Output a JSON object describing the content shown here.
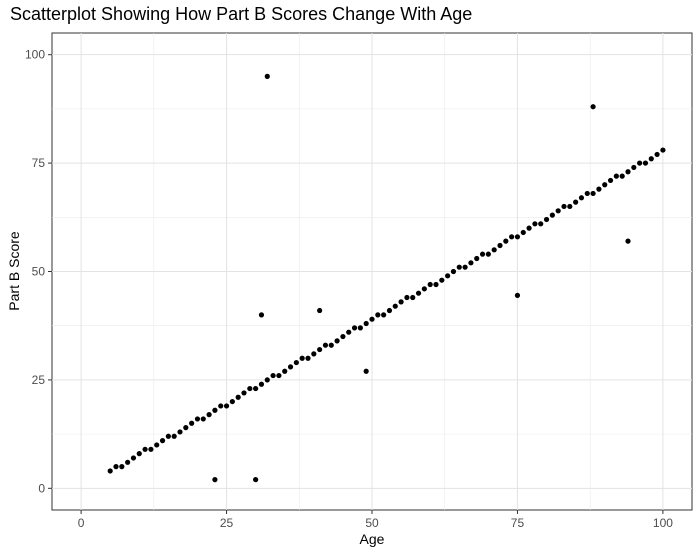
{
  "chart_data": {
    "type": "scatter",
    "title": "Scatterplot Showing How Part B Scores Change With Age",
    "xlabel": "Age",
    "ylabel": "Part B Score",
    "xlim": [
      -5,
      105
    ],
    "ylim": [
      -5,
      105
    ],
    "xticks": [
      0,
      25,
      50,
      75,
      100
    ],
    "yticks": [
      0,
      25,
      50,
      75,
      100
    ],
    "xtick_labels": [
      "0",
      "25",
      "50",
      "75",
      "100"
    ],
    "ytick_labels": [
      "0",
      "25",
      "50",
      "75",
      "100"
    ],
    "grid": true,
    "point_color": "#000000",
    "points": [
      [
        5,
        4
      ],
      [
        6,
        5
      ],
      [
        7,
        5
      ],
      [
        8,
        6
      ],
      [
        9,
        7
      ],
      [
        10,
        8
      ],
      [
        11,
        9
      ],
      [
        12,
        9
      ],
      [
        13,
        10
      ],
      [
        14,
        11
      ],
      [
        15,
        12
      ],
      [
        16,
        12
      ],
      [
        17,
        13
      ],
      [
        18,
        14
      ],
      [
        19,
        15
      ],
      [
        20,
        16
      ],
      [
        21,
        16
      ],
      [
        22,
        17
      ],
      [
        23,
        18
      ],
      [
        24,
        19
      ],
      [
        25,
        19
      ],
      [
        26,
        20
      ],
      [
        27,
        21
      ],
      [
        28,
        22
      ],
      [
        29,
        23
      ],
      [
        30,
        23
      ],
      [
        31,
        24
      ],
      [
        32,
        25
      ],
      [
        33,
        26
      ],
      [
        34,
        26
      ],
      [
        35,
        27
      ],
      [
        36,
        28
      ],
      [
        37,
        29
      ],
      [
        38,
        30
      ],
      [
        39,
        30
      ],
      [
        40,
        31
      ],
      [
        41,
        32
      ],
      [
        42,
        33
      ],
      [
        43,
        33
      ],
      [
        44,
        34
      ],
      [
        45,
        35
      ],
      [
        46,
        36
      ],
      [
        47,
        37
      ],
      [
        48,
        37
      ],
      [
        49,
        38
      ],
      [
        50,
        39
      ],
      [
        51,
        40
      ],
      [
        52,
        40
      ],
      [
        53,
        41
      ],
      [
        54,
        42
      ],
      [
        55,
        43
      ],
      [
        56,
        44
      ],
      [
        57,
        44
      ],
      [
        58,
        45
      ],
      [
        59,
        46
      ],
      [
        60,
        47
      ],
      [
        61,
        47
      ],
      [
        62,
        48
      ],
      [
        63,
        49
      ],
      [
        64,
        50
      ],
      [
        65,
        51
      ],
      [
        66,
        51
      ],
      [
        67,
        52
      ],
      [
        68,
        53
      ],
      [
        69,
        54
      ],
      [
        70,
        54
      ],
      [
        71,
        55
      ],
      [
        72,
        56
      ],
      [
        73,
        57
      ],
      [
        74,
        58
      ],
      [
        75,
        58
      ],
      [
        76,
        59
      ],
      [
        77,
        60
      ],
      [
        78,
        61
      ],
      [
        79,
        61
      ],
      [
        80,
        62
      ],
      [
        81,
        63
      ],
      [
        82,
        64
      ],
      [
        83,
        65
      ],
      [
        84,
        65
      ],
      [
        85,
        66
      ],
      [
        86,
        67
      ],
      [
        87,
        68
      ],
      [
        88,
        68
      ],
      [
        89,
        69
      ],
      [
        90,
        70
      ],
      [
        91,
        71
      ],
      [
        92,
        72
      ],
      [
        93,
        72
      ],
      [
        94,
        73
      ],
      [
        95,
        74
      ],
      [
        96,
        75
      ],
      [
        97,
        75
      ],
      [
        98,
        76
      ],
      [
        99,
        77
      ],
      [
        100,
        78
      ],
      [
        32,
        95
      ],
      [
        88,
        88
      ],
      [
        94,
        57
      ],
      [
        75,
        44.5
      ],
      [
        31,
        40
      ],
      [
        41,
        41
      ],
      [
        49,
        27
      ],
      [
        23,
        2
      ],
      [
        30,
        2
      ]
    ]
  }
}
